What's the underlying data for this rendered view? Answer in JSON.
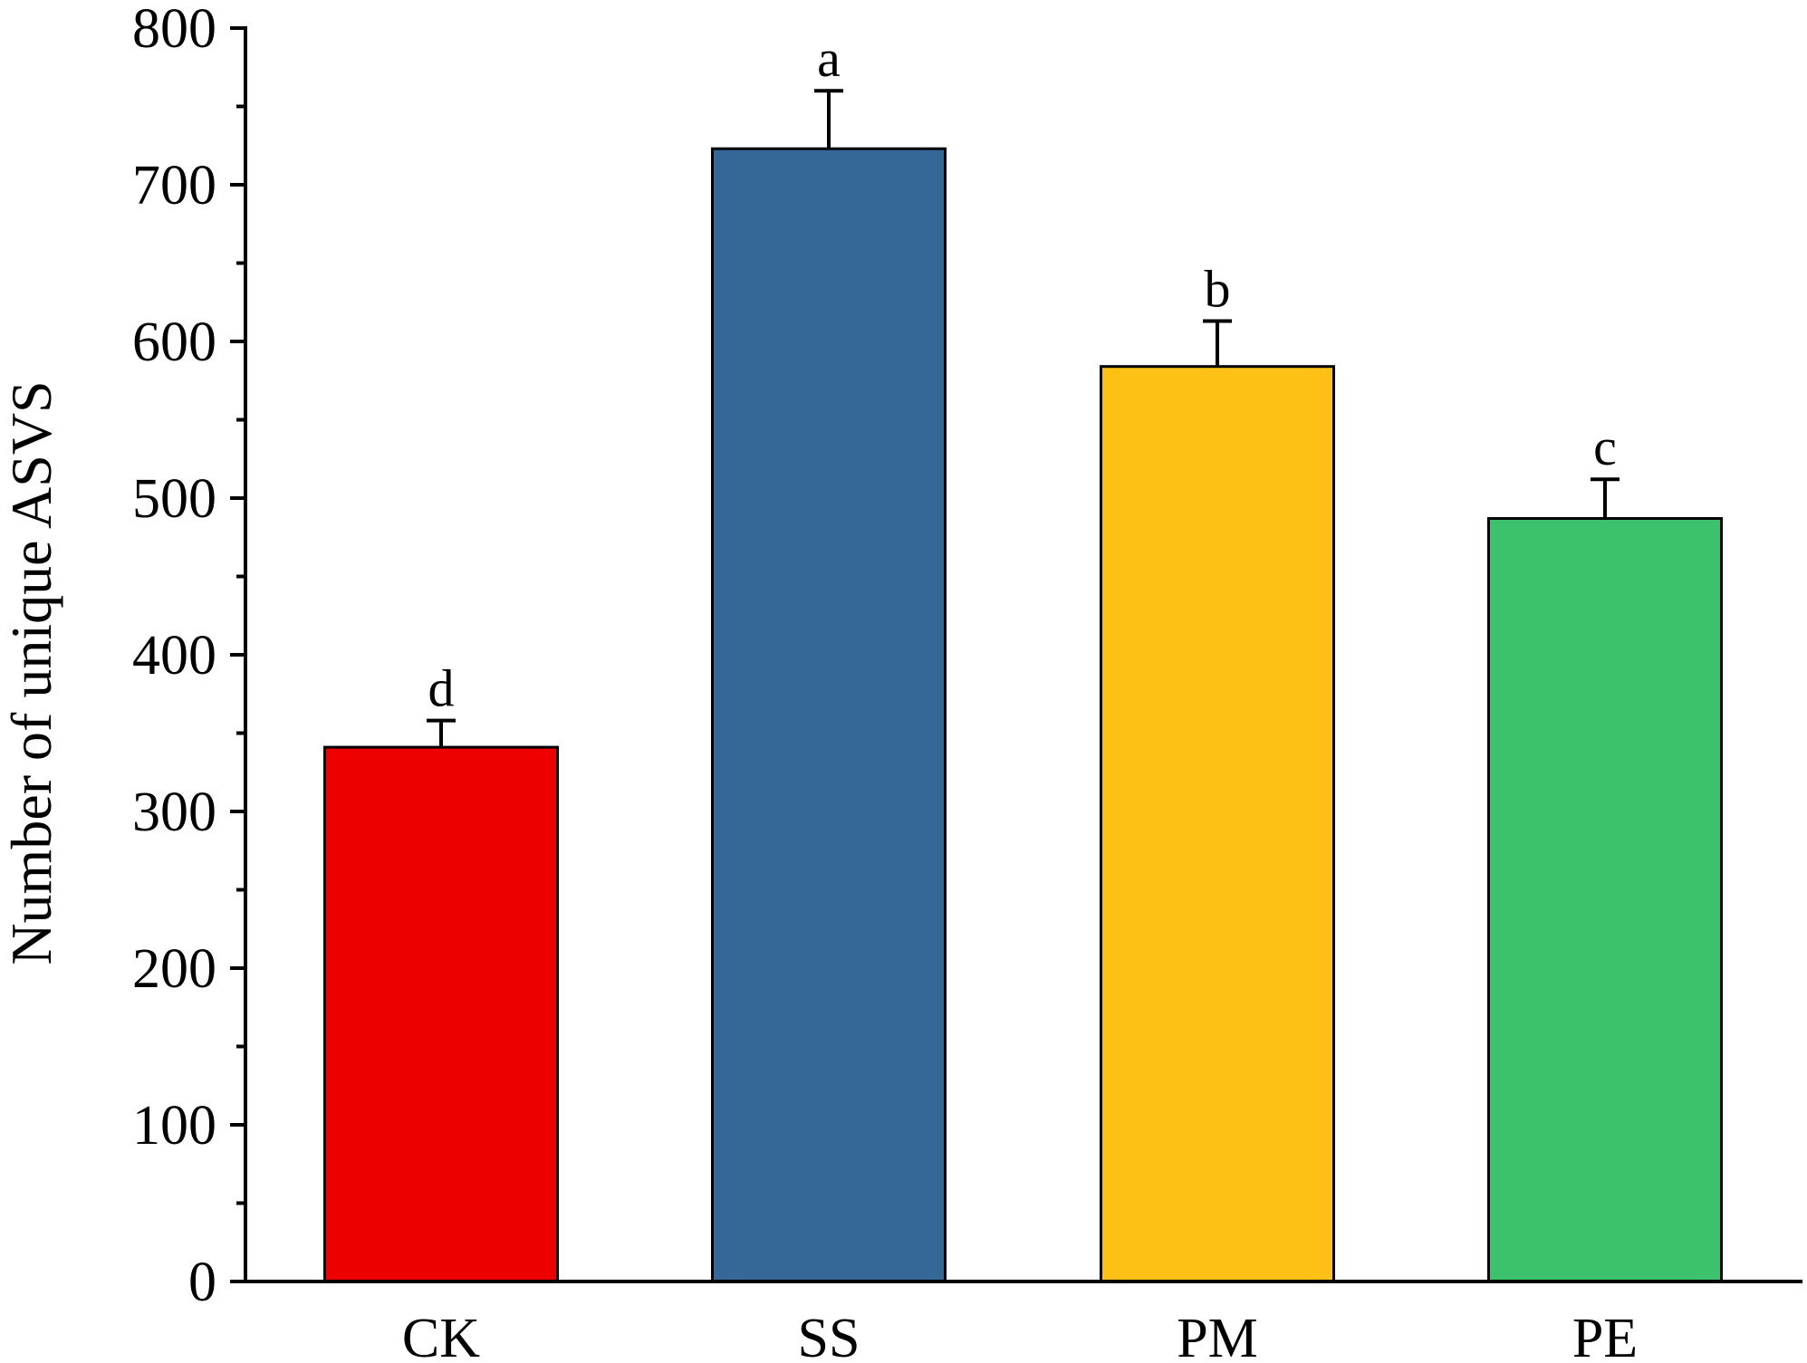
{
  "chart_data": {
    "type": "bar",
    "title": "",
    "xlabel": "",
    "ylabel": "Number of unique ASVS",
    "ylim": [
      0,
      800
    ],
    "y_ticks": [
      0,
      100,
      200,
      300,
      400,
      500,
      600,
      700,
      800
    ],
    "y_minor_ticks": [
      50,
      150,
      250,
      350,
      450,
      550,
      650,
      750
    ],
    "categories": [
      "CK",
      "SS",
      "PM",
      "PE"
    ],
    "values": [
      341,
      723,
      584,
      487
    ],
    "errors": [
      17,
      37,
      29,
      25
    ],
    "significance": [
      "d",
      "a",
      "b",
      "c"
    ],
    "colors": [
      "#ee0000",
      "#356897",
      "#fdc015",
      "#3cc26c"
    ],
    "grid": false,
    "legend": "none"
  }
}
